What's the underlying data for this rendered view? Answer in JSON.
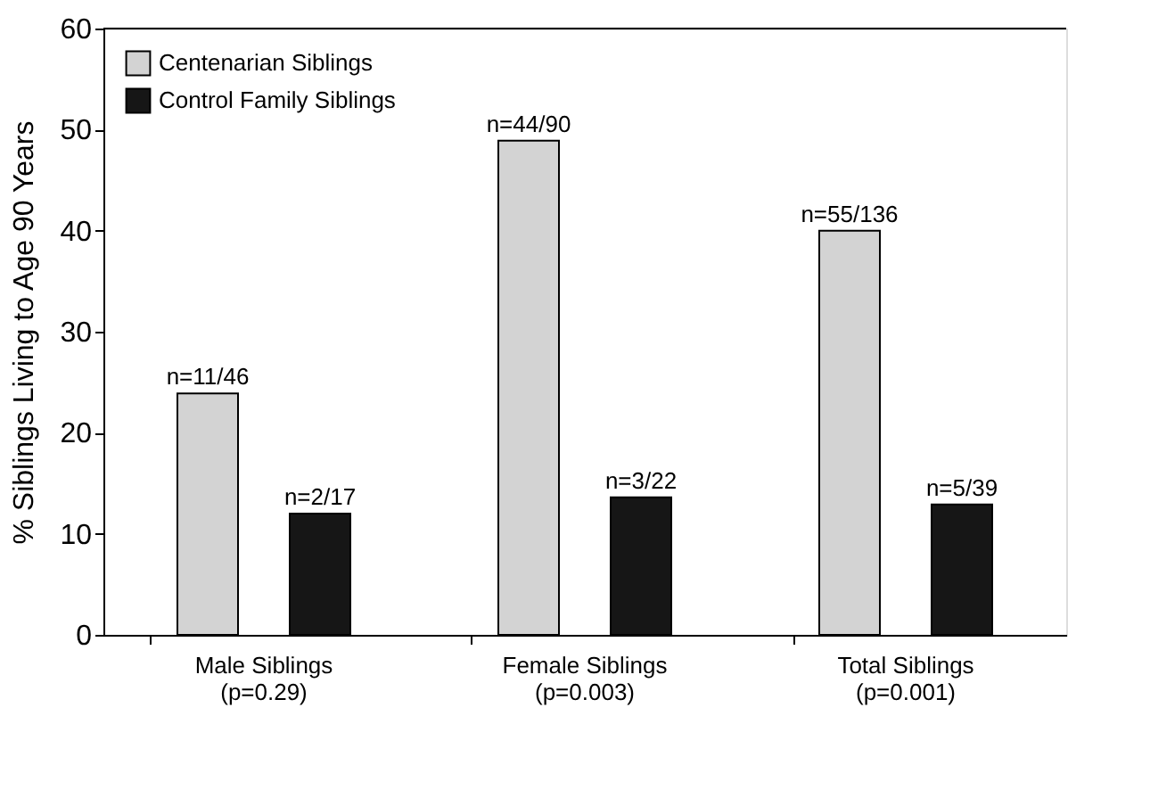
{
  "chart_data": {
    "type": "bar",
    "ylabel": "% Siblings Living to Age 90 Years",
    "categories": [
      "Male Siblings\n(p=0.29)",
      "Female Siblings\n(p=0.003)",
      "Total Siblings\n(p=0.001)"
    ],
    "series": [
      {
        "name": "Centenarian Siblings",
        "color": "#d3d3d3",
        "values": [
          23.9,
          48.9,
          40.0
        ],
        "value_labels": [
          "n=11/46",
          "n=44/90",
          "n=55/136"
        ]
      },
      {
        "name": "Control Family Siblings",
        "color": "#161616",
        "values": [
          12.0,
          13.6,
          12.9
        ],
        "value_labels": [
          "n=2/17",
          "n=3/22",
          "n=5/39"
        ]
      }
    ],
    "ylim": [
      0,
      60
    ],
    "yticks": [
      0,
      10,
      20,
      30,
      40,
      50,
      60
    ],
    "grid": false,
    "legend": "top left"
  }
}
